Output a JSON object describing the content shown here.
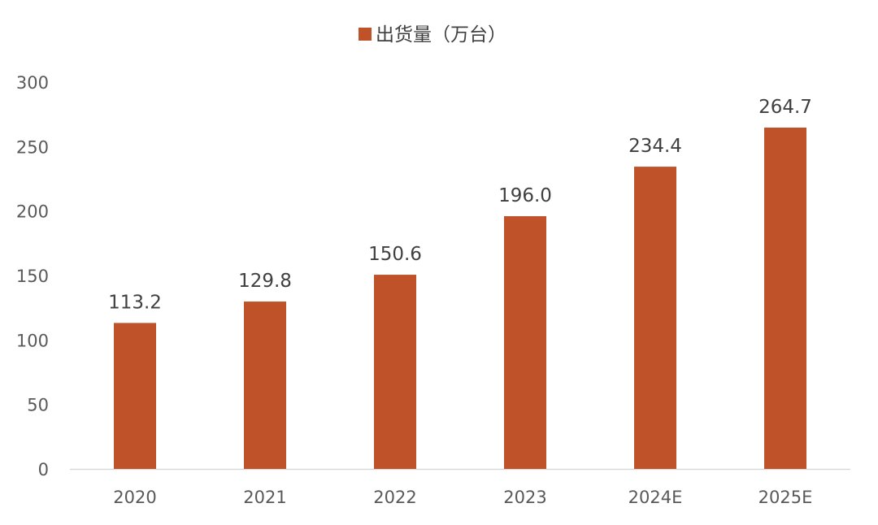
{
  "chart_data": {
    "type": "bar",
    "title": "",
    "xlabel": "",
    "ylabel": "",
    "legend": {
      "position": "top-center",
      "entries": [
        {
          "label": "出货量（万台）",
          "color": "#C0522A"
        }
      ]
    },
    "categories": [
      "2020",
      "2021",
      "2022",
      "2023",
      "2024E",
      "2025E"
    ],
    "series": [
      {
        "name": "出货量（万台）",
        "color": "#C0522A",
        "values": [
          113.2,
          129.8,
          150.6,
          196.0,
          234.4,
          264.7
        ],
        "value_labels": [
          "113.2",
          "129.8",
          "150.6",
          "196.0",
          "234.4",
          "264.7"
        ]
      }
    ],
    "ylim": [
      0,
      300
    ],
    "yticks": [
      0,
      50,
      100,
      150,
      200,
      250,
      300
    ],
    "grid": false,
    "axis_color": "#D9D9D9"
  }
}
